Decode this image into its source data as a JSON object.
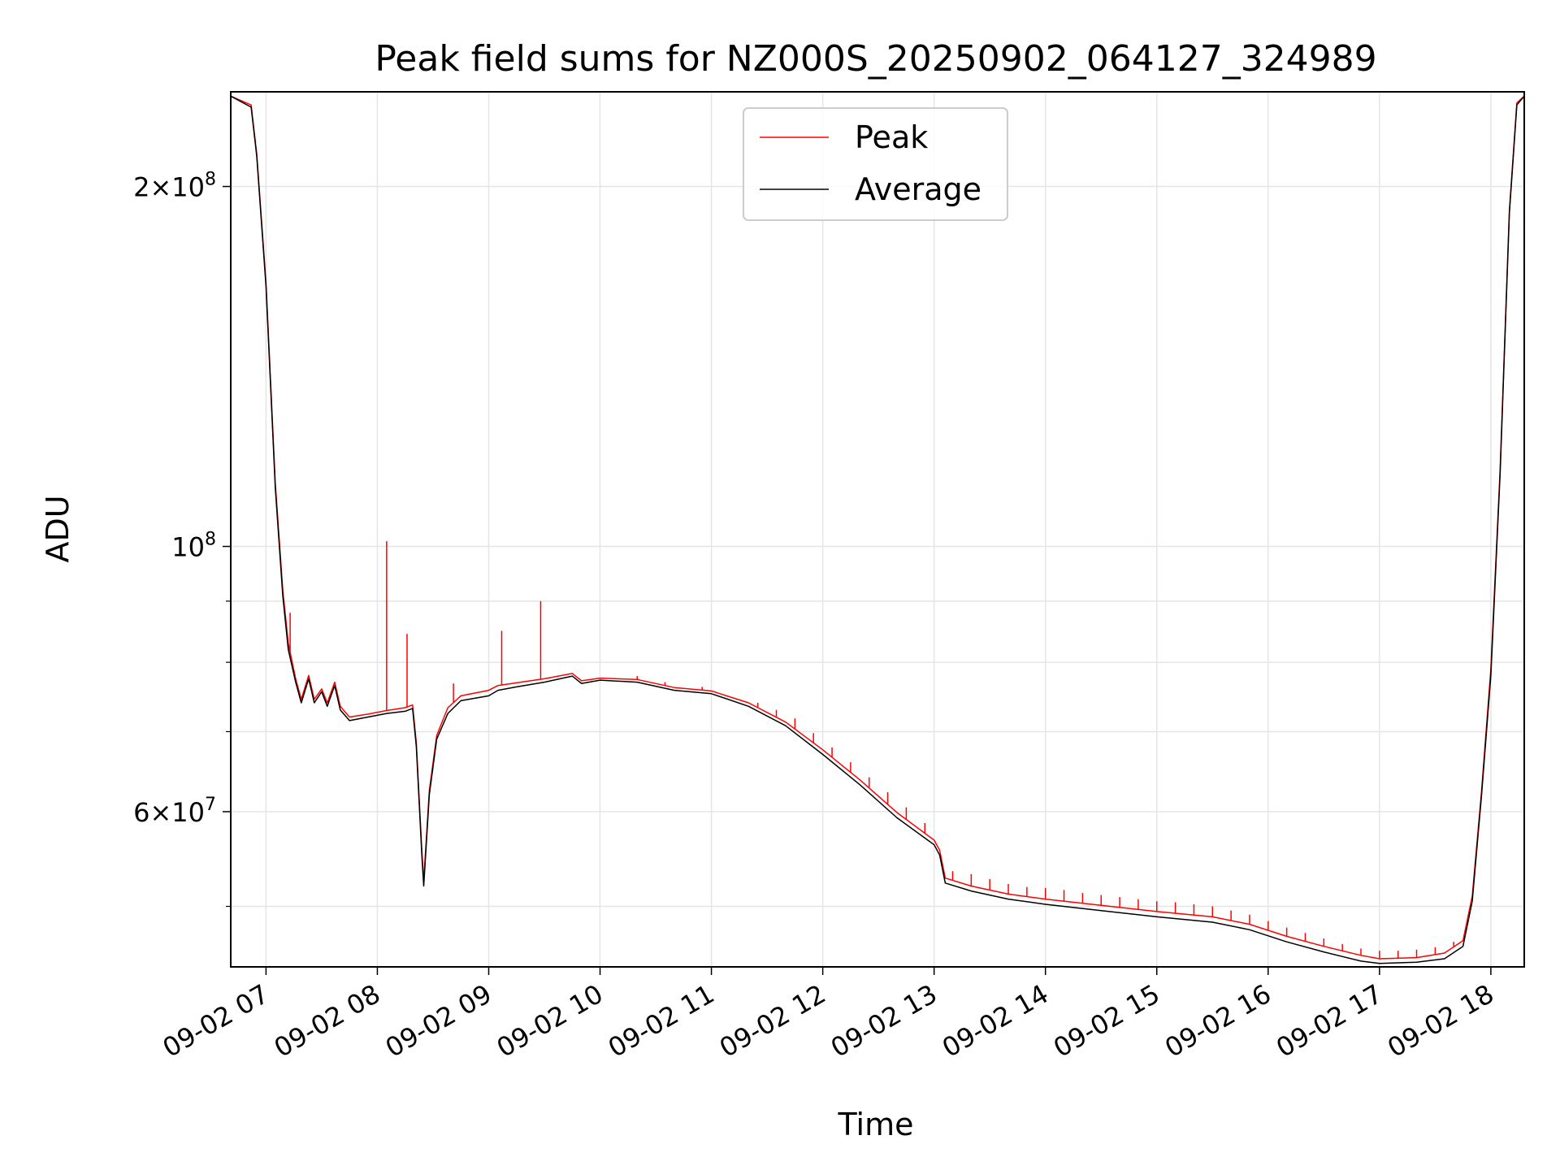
{
  "chart_data": {
    "type": "line",
    "title": "Peak field sums for NZ000S_20250902_064127_324989",
    "xlabel": "Time",
    "ylabel": "ADU",
    "yscale": "log",
    "grid": true,
    "legend_position": "top-center",
    "xlim": [
      "2025-09-02 06:41",
      "2025-09-02 18:18"
    ],
    "ylim": [
      44500000,
      240000000
    ],
    "x_ticks": [
      {
        "t": "2025-09-02 07:00",
        "label": "09-02 07"
      },
      {
        "t": "2025-09-02 08:00",
        "label": "09-02 08"
      },
      {
        "t": "2025-09-02 09:00",
        "label": "09-02 09"
      },
      {
        "t": "2025-09-02 10:00",
        "label": "09-02 10"
      },
      {
        "t": "2025-09-02 11:00",
        "label": "09-02 11"
      },
      {
        "t": "2025-09-02 12:00",
        "label": "09-02 12"
      },
      {
        "t": "2025-09-02 13:00",
        "label": "09-02 13"
      },
      {
        "t": "2025-09-02 14:00",
        "label": "09-02 14"
      },
      {
        "t": "2025-09-02 15:00",
        "label": "09-02 15"
      },
      {
        "t": "2025-09-02 16:00",
        "label": "09-02 16"
      },
      {
        "t": "2025-09-02 17:00",
        "label": "09-02 17"
      },
      {
        "t": "2025-09-02 18:00",
        "label": "09-02 18"
      }
    ],
    "y_major_ticks": [
      {
        "value": 60000000,
        "base": "6×10",
        "exp": "7"
      },
      {
        "value": 100000000,
        "base": "10",
        "exp": "8"
      },
      {
        "value": 200000000,
        "base": "2×10",
        "exp": "8"
      }
    ],
    "y_minor_ticks": [
      50000000,
      70000000,
      80000000,
      90000000
    ],
    "series": [
      {
        "name": "Average",
        "color": "#000000",
        "points": [
          [
            "2025-09-02 06:41",
            238000000
          ],
          [
            "2025-09-02 06:52",
            233000000
          ],
          [
            "2025-09-02 06:55",
            212000000
          ],
          [
            "2025-09-02 07:00",
            165000000
          ],
          [
            "2025-09-02 07:05",
            112000000
          ],
          [
            "2025-09-02 07:09",
            91000000
          ],
          [
            "2025-09-02 07:12",
            82000000
          ],
          [
            "2025-09-02 07:16",
            77000000
          ],
          [
            "2025-09-02 07:19",
            74000000
          ],
          [
            "2025-09-02 07:23",
            77500000
          ],
          [
            "2025-09-02 07:26",
            74000000
          ],
          [
            "2025-09-02 07:30",
            75600000
          ],
          [
            "2025-09-02 07:33",
            73500000
          ],
          [
            "2025-09-02 07:37",
            76500000
          ],
          [
            "2025-09-02 07:40",
            73000000
          ],
          [
            "2025-09-02 07:45",
            71500000
          ],
          [
            "2025-09-02 07:55",
            72000000
          ],
          [
            "2025-09-02 08:05",
            72500000
          ],
          [
            "2025-09-02 08:15",
            72800000
          ],
          [
            "2025-09-02 08:19",
            73200000
          ],
          [
            "2025-09-02 08:21",
            68000000
          ],
          [
            "2025-09-02 08:24",
            55000000
          ],
          [
            "2025-09-02 08:25",
            52000000
          ],
          [
            "2025-09-02 08:28",
            62000000
          ],
          [
            "2025-09-02 08:32",
            69000000
          ],
          [
            "2025-09-02 08:38",
            72500000
          ],
          [
            "2025-09-02 08:45",
            74300000
          ],
          [
            "2025-09-02 09:00",
            75000000
          ],
          [
            "2025-09-02 09:05",
            75800000
          ],
          [
            "2025-09-02 09:15",
            76300000
          ],
          [
            "2025-09-02 09:30",
            77000000
          ],
          [
            "2025-09-02 09:45",
            77900000
          ],
          [
            "2025-09-02 09:50",
            76800000
          ],
          [
            "2025-09-02 10:00",
            77300000
          ],
          [
            "2025-09-02 10:20",
            77000000
          ],
          [
            "2025-09-02 10:40",
            75800000
          ],
          [
            "2025-09-02 11:00",
            75300000
          ],
          [
            "2025-09-02 11:20",
            73500000
          ],
          [
            "2025-09-02 11:40",
            70800000
          ],
          [
            "2025-09-02 12:00",
            67000000
          ],
          [
            "2025-09-02 12:20",
            63200000
          ],
          [
            "2025-09-02 12:40",
            59300000
          ],
          [
            "2025-09-02 13:00",
            56300000
          ],
          [
            "2025-09-02 13:03",
            55200000
          ],
          [
            "2025-09-02 13:06",
            52300000
          ],
          [
            "2025-09-02 13:20",
            51500000
          ],
          [
            "2025-09-02 13:40",
            50700000
          ],
          [
            "2025-09-02 14:00",
            50200000
          ],
          [
            "2025-09-02 14:30",
            49600000
          ],
          [
            "2025-09-02 15:00",
            49000000
          ],
          [
            "2025-09-02 15:30",
            48500000
          ],
          [
            "2025-09-02 15:50",
            47800000
          ],
          [
            "2025-09-02 16:10",
            46700000
          ],
          [
            "2025-09-02 16:30",
            45800000
          ],
          [
            "2025-09-02 16:50",
            45000000
          ],
          [
            "2025-09-02 17:00",
            44800000
          ],
          [
            "2025-09-02 17:20",
            44900000
          ],
          [
            "2025-09-02 17:35",
            45200000
          ],
          [
            "2025-09-02 17:45",
            46300000
          ],
          [
            "2025-09-02 17:50",
            50500000
          ],
          [
            "2025-09-02 17:55",
            62000000
          ],
          [
            "2025-09-02 18:00",
            78000000
          ],
          [
            "2025-09-02 18:05",
            115000000
          ],
          [
            "2025-09-02 18:10",
            190000000
          ],
          [
            "2025-09-02 18:14",
            234000000
          ],
          [
            "2025-09-02 18:18",
            238000000
          ]
        ]
      },
      {
        "name": "Peak",
        "color": "#ff0000",
        "points": [
          [
            "2025-09-02 06:41",
            238000000
          ],
          [
            "2025-09-02 06:52",
            234000000
          ],
          [
            "2025-09-02 06:55",
            213000000
          ],
          [
            "2025-09-02 07:00",
            166000000
          ],
          [
            "2025-09-02 07:05",
            113000000
          ],
          [
            "2025-09-02 07:09",
            92000000
          ],
          [
            "2025-09-02 07:12",
            83000000
          ],
          [
            "2025-09-02 07:16",
            77500000
          ],
          [
            "2025-09-02 07:19",
            74500000
          ],
          [
            "2025-09-02 07:23",
            78000000
          ],
          [
            "2025-09-02 07:26",
            74500000
          ],
          [
            "2025-09-02 07:30",
            76000000
          ],
          [
            "2025-09-02 07:33",
            74000000
          ],
          [
            "2025-09-02 07:37",
            77000000
          ],
          [
            "2025-09-02 07:40",
            73500000
          ],
          [
            "2025-09-02 07:45",
            72000000
          ],
          [
            "2025-09-02 07:55",
            72400000
          ],
          [
            "2025-09-02 08:05",
            72900000
          ],
          [
            "2025-09-02 08:15",
            73300000
          ],
          [
            "2025-09-02 08:19",
            73700000
          ],
          [
            "2025-09-02 08:21",
            68500000
          ],
          [
            "2025-09-02 08:24",
            55500000
          ],
          [
            "2025-09-02 08:25",
            52500000
          ],
          [
            "2025-09-02 08:28",
            62500000
          ],
          [
            "2025-09-02 08:32",
            69500000
          ],
          [
            "2025-09-02 08:38",
            73300000
          ],
          [
            "2025-09-02 08:45",
            75000000
          ],
          [
            "2025-09-02 09:00",
            75800000
          ],
          [
            "2025-09-02 09:05",
            76500000
          ],
          [
            "2025-09-02 09:15",
            76900000
          ],
          [
            "2025-09-02 09:30",
            77500000
          ],
          [
            "2025-09-02 09:45",
            78300000
          ],
          [
            "2025-09-02 09:50",
            77200000
          ],
          [
            "2025-09-02 10:00",
            77600000
          ],
          [
            "2025-09-02 10:20",
            77400000
          ],
          [
            "2025-09-02 10:40",
            76200000
          ],
          [
            "2025-09-02 11:00",
            75700000
          ],
          [
            "2025-09-02 11:20",
            74000000
          ],
          [
            "2025-09-02 11:40",
            71300000
          ],
          [
            "2025-09-02 12:00",
            67600000
          ],
          [
            "2025-09-02 12:20",
            63800000
          ],
          [
            "2025-09-02 12:40",
            59900000
          ],
          [
            "2025-09-02 13:00",
            56800000
          ],
          [
            "2025-09-02 13:03",
            55700000
          ],
          [
            "2025-09-02 13:06",
            52800000
          ],
          [
            "2025-09-02 13:20",
            52000000
          ],
          [
            "2025-09-02 13:40",
            51200000
          ],
          [
            "2025-09-02 14:00",
            50700000
          ],
          [
            "2025-09-02 14:30",
            50100000
          ],
          [
            "2025-09-02 15:00",
            49500000
          ],
          [
            "2025-09-02 15:30",
            49000000
          ],
          [
            "2025-09-02 15:50",
            48300000
          ],
          [
            "2025-09-02 16:10",
            47200000
          ],
          [
            "2025-09-02 16:30",
            46300000
          ],
          [
            "2025-09-02 16:50",
            45500000
          ],
          [
            "2025-09-02 17:00",
            45200000
          ],
          [
            "2025-09-02 17:20",
            45300000
          ],
          [
            "2025-09-02 17:35",
            45700000
          ],
          [
            "2025-09-02 17:45",
            46800000
          ],
          [
            "2025-09-02 17:50",
            51000000
          ],
          [
            "2025-09-02 17:55",
            62500000
          ],
          [
            "2025-09-02 18:00",
            79000000
          ],
          [
            "2025-09-02 18:05",
            116000000
          ],
          [
            "2025-09-02 18:10",
            191000000
          ],
          [
            "2025-09-02 18:14",
            235000000
          ],
          [
            "2025-09-02 18:18",
            238000000
          ]
        ],
        "spikes": [
          [
            "2025-09-02 07:13",
            88000000
          ],
          [
            "2025-09-02 08:05",
            101000000
          ],
          [
            "2025-09-02 08:16",
            84500000
          ],
          [
            "2025-09-02 08:41",
            76800000
          ],
          [
            "2025-09-02 09:07",
            85000000
          ],
          [
            "2025-09-02 09:28",
            90000000
          ],
          [
            "2025-09-02 10:20",
            77900000
          ],
          [
            "2025-09-02 10:35",
            77000000
          ],
          [
            "2025-09-02 10:55",
            76300000
          ],
          [
            "2025-09-02 11:25",
            74000000
          ],
          [
            "2025-09-02 11:35",
            73000000
          ],
          [
            "2025-09-02 11:45",
            71800000
          ],
          [
            "2025-09-02 11:55",
            69800000
          ],
          [
            "2025-09-02 12:05",
            67900000
          ],
          [
            "2025-09-02 12:15",
            66000000
          ],
          [
            "2025-09-02 12:25",
            64100000
          ],
          [
            "2025-09-02 12:35",
            62300000
          ],
          [
            "2025-09-02 12:45",
            60500000
          ],
          [
            "2025-09-02 12:55",
            58700000
          ],
          [
            "2025-09-02 13:10",
            53500000
          ],
          [
            "2025-09-02 13:20",
            53200000
          ],
          [
            "2025-09-02 13:30",
            52700000
          ],
          [
            "2025-09-02 13:40",
            52200000
          ],
          [
            "2025-09-02 13:50",
            51900000
          ],
          [
            "2025-09-02 14:00",
            51800000
          ],
          [
            "2025-09-02 14:10",
            51600000
          ],
          [
            "2025-09-02 14:20",
            51300000
          ],
          [
            "2025-09-02 14:30",
            51100000
          ],
          [
            "2025-09-02 14:40",
            50900000
          ],
          [
            "2025-09-02 14:50",
            50700000
          ],
          [
            "2025-09-02 15:00",
            50500000
          ],
          [
            "2025-09-02 15:10",
            50400000
          ],
          [
            "2025-09-02 15:20",
            50200000
          ],
          [
            "2025-09-02 15:30",
            50000000
          ],
          [
            "2025-09-02 15:40",
            49600000
          ],
          [
            "2025-09-02 15:50",
            49200000
          ],
          [
            "2025-09-02 16:00",
            48600000
          ],
          [
            "2025-09-02 16:10",
            48000000
          ],
          [
            "2025-09-02 16:20",
            47500000
          ],
          [
            "2025-09-02 16:30",
            47000000
          ],
          [
            "2025-09-02 16:40",
            46500000
          ],
          [
            "2025-09-02 16:50",
            46100000
          ],
          [
            "2025-09-02 17:00",
            45900000
          ],
          [
            "2025-09-02 17:10",
            45900000
          ],
          [
            "2025-09-02 17:20",
            46000000
          ],
          [
            "2025-09-02 17:30",
            46200000
          ],
          [
            "2025-09-02 17:40",
            46700000
          ]
        ]
      }
    ]
  }
}
